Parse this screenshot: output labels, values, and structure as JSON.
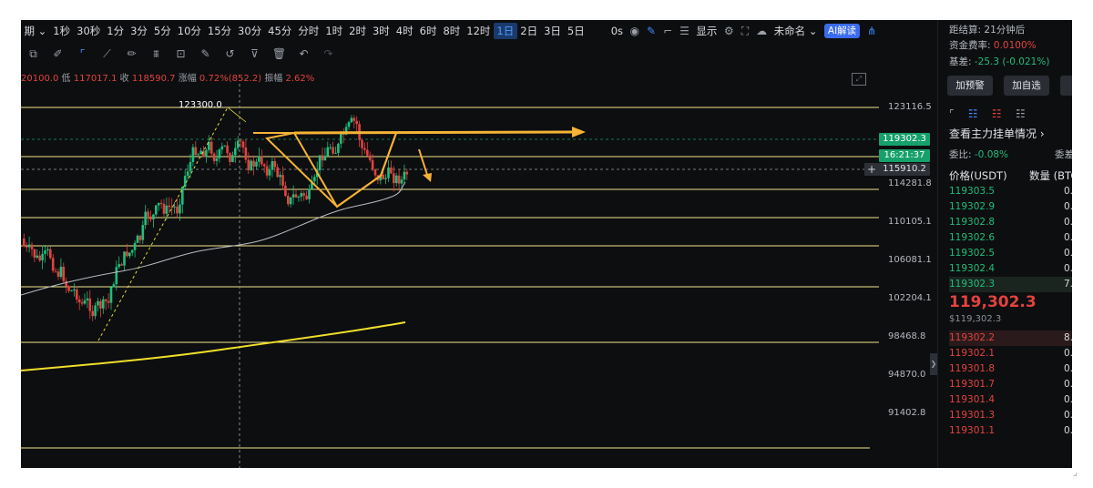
{
  "toolbar": {
    "period_label": "期",
    "timeframes": [
      "1秒",
      "30秒",
      "1分",
      "3分",
      "5分",
      "10分",
      "15分",
      "30分",
      "45分",
      "分时",
      "1时",
      "2时",
      "3时",
      "4时",
      "6时",
      "8时",
      "12时",
      "1日",
      "2日",
      "3日",
      "5日"
    ],
    "active_timeframe": "1日",
    "seconds_label": "0s",
    "display_label": "显示",
    "unnamed_label": "未命名",
    "ai_label": "AI解读"
  },
  "ohlc": {
    "open_partial": "20100.0",
    "low_label": "低",
    "low": "117017.1",
    "close_label": "收",
    "close": "118590.7",
    "change_label": "涨幅",
    "change": "0.72%(852.2)",
    "amplitude_label": "振幅",
    "amplitude": "2.62%"
  },
  "chart": {
    "price_ticks": [
      "123116.5",
      "114281.8",
      "110105.1",
      "106081.1",
      "102204.1",
      "98468.8",
      "94870.0",
      "91402.8"
    ],
    "last_price_tag": "119302.3",
    "countdown_tag": "16:21:37",
    "crosshair_price_tag": "115910.2",
    "peak_annotation": "123300.0",
    "colors": {
      "up": "#1dbf7c",
      "down": "#e2433e",
      "support": "#f2e68a",
      "ma": "#e6d93c",
      "annotation": "#f5b335"
    }
  },
  "panel": {
    "settlement_label": "距结算:",
    "settlement_value": "21分钟后",
    "funding_label": "资金费率:",
    "funding_value": "0.0100%",
    "basis_label": "基差:",
    "basis_value": "-25.3 (-0.021%)",
    "alert_button": "加预警",
    "watchlist_button": "加自选",
    "main_orders_label": "查看主力挂单情况",
    "ratio_label": "委比:",
    "ratio_value": "-0.08%",
    "ratio_right": "委差",
    "price_header": "价格(USDT)",
    "qty_header": "数量 (BTC",
    "bids": [
      {
        "price": "119303.5",
        "qty": "0."
      },
      {
        "price": "119302.9",
        "qty": "0."
      },
      {
        "price": "119302.8",
        "qty": "0."
      },
      {
        "price": "119302.6",
        "qty": "0."
      },
      {
        "price": "119302.5",
        "qty": "0."
      },
      {
        "price": "119302.4",
        "qty": "0."
      },
      {
        "price": "119302.3",
        "qty": "7."
      }
    ],
    "last_price": "119,302.3",
    "last_price_usd": "$119,302.3",
    "asks": [
      {
        "price": "119302.2",
        "qty": "8."
      },
      {
        "price": "119302.1",
        "qty": "0."
      },
      {
        "price": "119301.8",
        "qty": "0."
      },
      {
        "price": "119301.7",
        "qty": "0."
      },
      {
        "price": "119301.4",
        "qty": "0."
      },
      {
        "price": "119301.3",
        "qty": "0."
      },
      {
        "price": "119301.1",
        "qty": "0."
      }
    ]
  }
}
